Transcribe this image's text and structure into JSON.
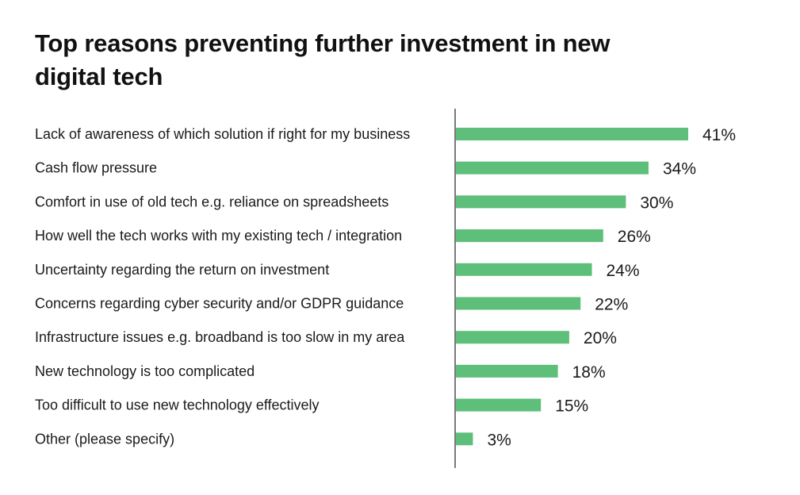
{
  "chart_data": {
    "type": "bar",
    "orientation": "horizontal",
    "title": "Top reasons preventing further investment in new digital tech",
    "categories": [
      "Lack of awareness of which solution if right for my business",
      "Cash flow pressure",
      "Comfort in use of old tech e.g. reliance on spreadsheets",
      "How well the tech works with my existing tech / integration",
      "Uncertainty regarding the return on investment",
      "Concerns regarding cyber security and/or GDPR guidance",
      "Infrastructure issues e.g. broadband is too slow in my area",
      "New technology is too complicated",
      "Too difficult to use new technology effectively",
      "Other (please specify)"
    ],
    "values": [
      41,
      34,
      30,
      26,
      24,
      22,
      20,
      18,
      15,
      3
    ],
    "value_labels": [
      "41%",
      "34%",
      "30%",
      "26%",
      "24%",
      "22%",
      "20%",
      "18%",
      "15%",
      "3%"
    ],
    "xlabel": "",
    "ylabel": "",
    "xlim": [
      0,
      41
    ],
    "grid": false,
    "bar_color": "#5dbf7a"
  }
}
